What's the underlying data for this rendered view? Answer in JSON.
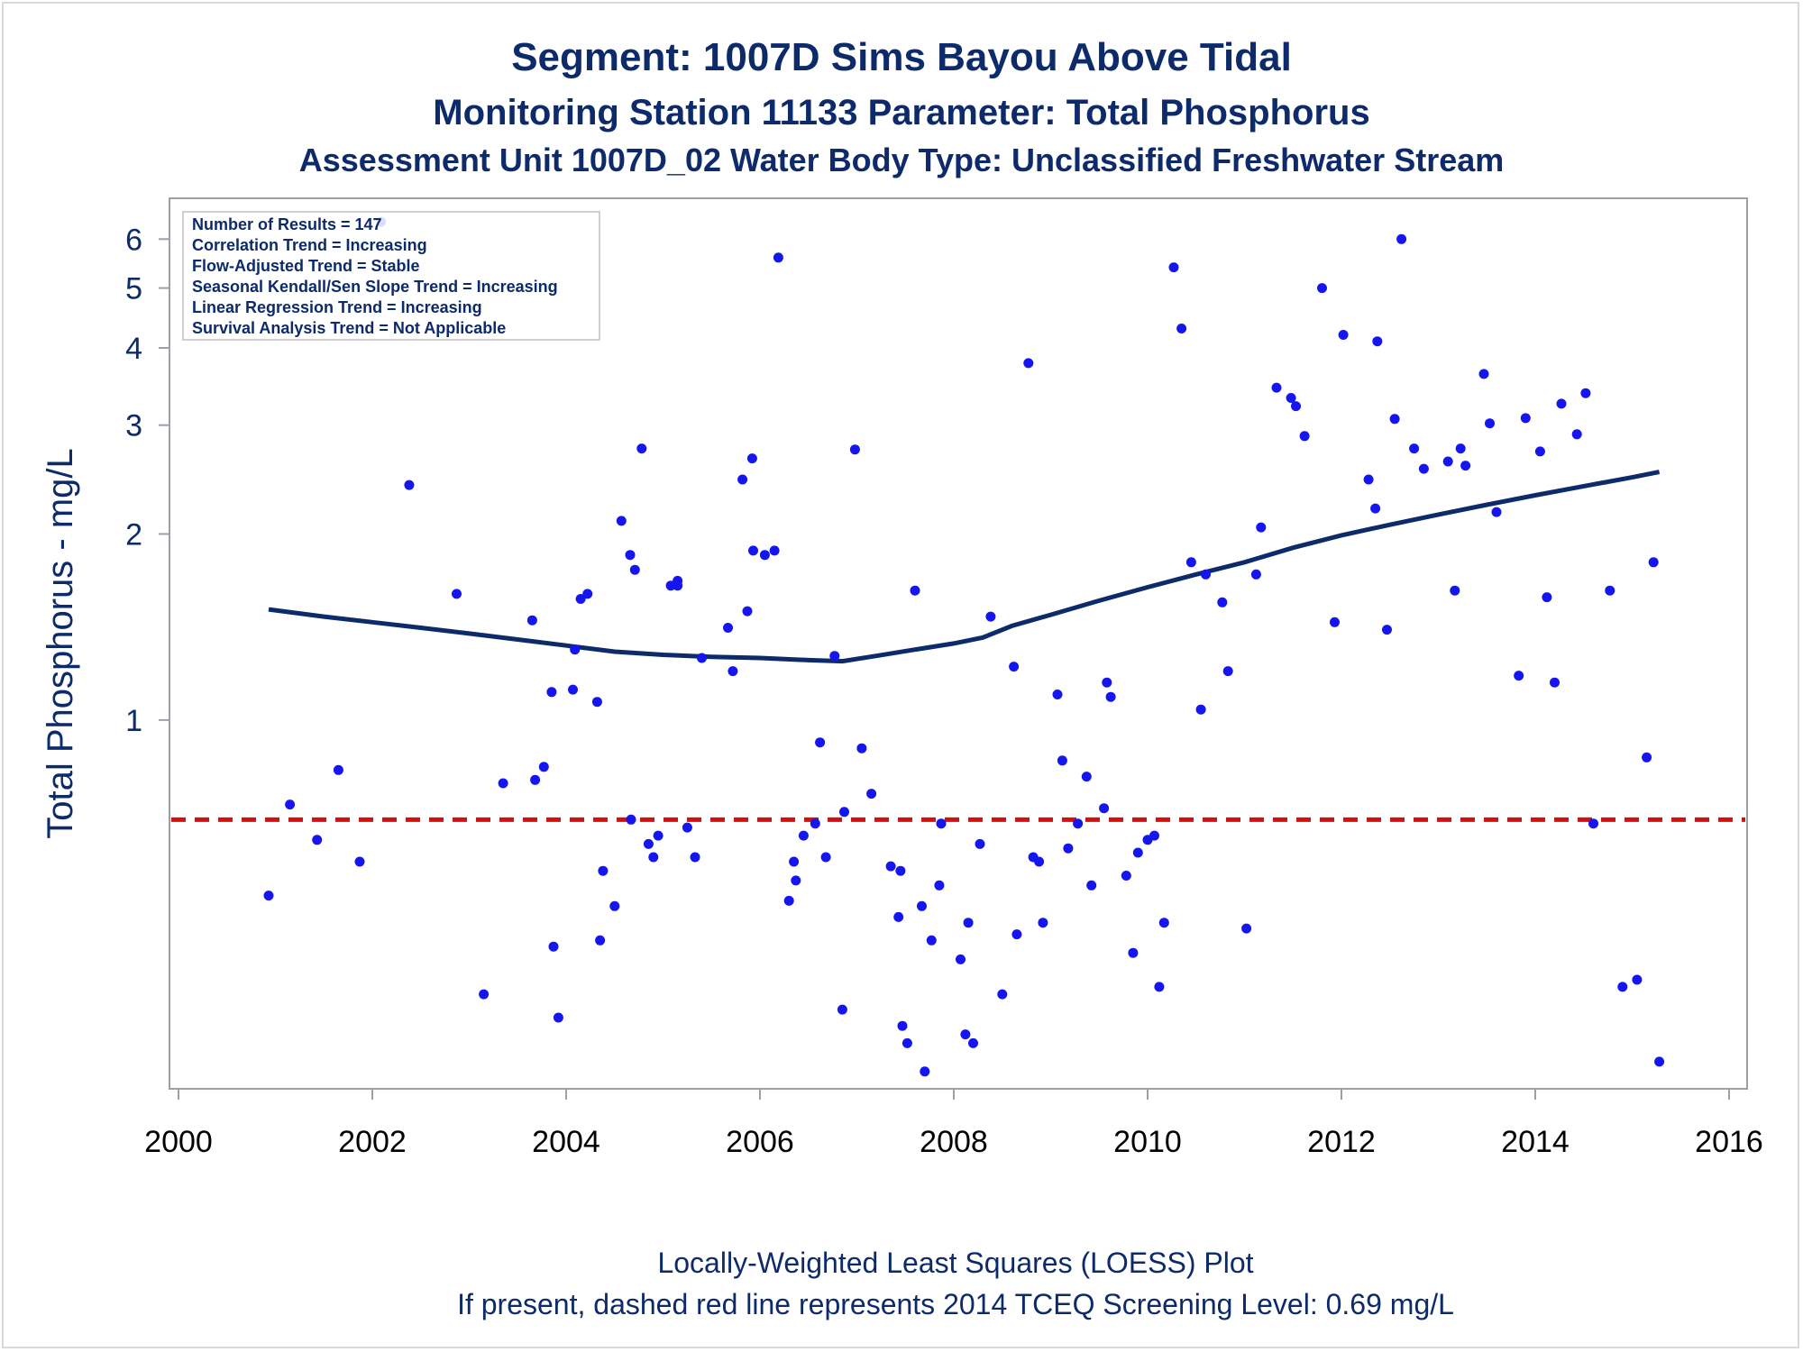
{
  "titles": [
    "Segment: 1007D  Sims Bayou Above Tidal",
    "Monitoring Station 11133 Parameter: Total Phosphorus",
    "Assessment Unit 1007D_02   Water Body Type: Unclassified Freshwater Stream"
  ],
  "footnotes": [
    "Locally-Weighted Least Squares (LOESS) Plot",
    "If present, dashed red line represents 2014 TCEQ Screening Level: 0.69 mg/L"
  ],
  "colors": {
    "text": "#0d2a6b",
    "points": "#1515f0",
    "loess": "#0d2a6b",
    "screening": "#d40f0f",
    "frame": "#9aa0a6"
  },
  "chart_data": {
    "type": "scatter",
    "y_scale": "log",
    "ylabel": "Total Phosphorus - mg/L",
    "xlabel": "",
    "xlim": [
      2000,
      2016
    ],
    "ylim": [
      0.26,
      6.8
    ],
    "x_ticks": [
      2000,
      2002,
      2004,
      2006,
      2008,
      2010,
      2012,
      2014,
      2016
    ],
    "y_ticks": [
      1,
      2,
      3,
      4,
      5,
      6
    ],
    "stats": [
      "Number of Results = 147",
      "Correlation Trend = Increasing",
      "Flow-Adjusted Trend = Stable",
      "Seasonal Kendall/Sen Slope Trend = Increasing",
      "Linear Regression Trend = Increasing",
      "Survival Analysis Trend = Not Applicable"
    ],
    "screening_level": 0.69,
    "points": [
      [
        2000.93,
        0.52
      ],
      [
        2001.15,
        0.73
      ],
      [
        2001.43,
        0.64
      ],
      [
        2001.65,
        0.83
      ],
      [
        2001.87,
        0.59
      ],
      [
        2002.09,
        6.4
      ],
      [
        2002.38,
        2.4
      ],
      [
        2002.87,
        1.6
      ],
      [
        2003.15,
        0.36
      ],
      [
        2003.35,
        0.79
      ],
      [
        2003.65,
        1.45
      ],
      [
        2003.68,
        0.8
      ],
      [
        2003.77,
        0.84
      ],
      [
        2003.85,
        1.11
      ],
      [
        2003.87,
        0.43
      ],
      [
        2003.92,
        0.33
      ],
      [
        2004.07,
        1.12
      ],
      [
        2004.09,
        1.3
      ],
      [
        2004.15,
        1.57
      ],
      [
        2004.22,
        1.6
      ],
      [
        2004.32,
        1.07
      ],
      [
        2004.35,
        0.44
      ],
      [
        2004.38,
        0.57
      ],
      [
        2004.5,
        0.5
      ],
      [
        2004.57,
        2.1
      ],
      [
        2004.66,
        1.85
      ],
      [
        2004.67,
        0.69
      ],
      [
        2004.71,
        1.75
      ],
      [
        2004.78,
        2.75
      ],
      [
        2004.85,
        0.63
      ],
      [
        2004.9,
        0.6
      ],
      [
        2004.95,
        0.65
      ],
      [
        2005.08,
        1.65
      ],
      [
        2005.15,
        1.68
      ],
      [
        2005.15,
        1.65
      ],
      [
        2005.25,
        0.67
      ],
      [
        2005.33,
        0.6
      ],
      [
        2005.4,
        1.26
      ],
      [
        2005.67,
        1.41
      ],
      [
        2005.72,
        1.2
      ],
      [
        2005.82,
        2.45
      ],
      [
        2005.87,
        1.5
      ],
      [
        2005.92,
        2.65
      ],
      [
        2005.93,
        1.88
      ],
      [
        2006.05,
        1.85
      ],
      [
        2006.15,
        1.88
      ],
      [
        2006.19,
        5.6
      ],
      [
        2006.3,
        0.51
      ],
      [
        2006.35,
        0.59
      ],
      [
        2006.37,
        0.55
      ],
      [
        2006.45,
        0.65
      ],
      [
        2006.57,
        0.68
      ],
      [
        2006.62,
        0.92
      ],
      [
        2006.68,
        0.6
      ],
      [
        2006.77,
        1.27
      ],
      [
        2006.85,
        0.34
      ],
      [
        2006.87,
        0.71
      ],
      [
        2006.98,
        2.74
      ],
      [
        2007.05,
        0.9
      ],
      [
        2007.15,
        0.76
      ],
      [
        2007.35,
        0.58
      ],
      [
        2007.43,
        0.48
      ],
      [
        2007.45,
        0.57
      ],
      [
        2007.47,
        0.32
      ],
      [
        2007.52,
        0.3
      ],
      [
        2007.6,
        1.62
      ],
      [
        2007.67,
        0.5
      ],
      [
        2007.7,
        0.27
      ],
      [
        2007.77,
        0.44
      ],
      [
        2007.85,
        0.54
      ],
      [
        2007.87,
        0.68
      ],
      [
        2008.07,
        0.41
      ],
      [
        2008.12,
        0.31
      ],
      [
        2008.15,
        0.47
      ],
      [
        2008.2,
        0.3
      ],
      [
        2008.27,
        0.63
      ],
      [
        2008.38,
        1.47
      ],
      [
        2008.5,
        0.36
      ],
      [
        2008.62,
        1.22
      ],
      [
        2008.65,
        0.45
      ],
      [
        2008.77,
        3.78
      ],
      [
        2008.82,
        0.6
      ],
      [
        2008.88,
        0.59
      ],
      [
        2008.92,
        0.47
      ],
      [
        2009.07,
        1.1
      ],
      [
        2009.12,
        0.86
      ],
      [
        2009.18,
        0.62
      ],
      [
        2009.28,
        0.68
      ],
      [
        2009.37,
        0.81
      ],
      [
        2009.42,
        0.54
      ],
      [
        2009.55,
        0.72
      ],
      [
        2009.58,
        1.15
      ],
      [
        2009.62,
        1.09
      ],
      [
        2009.78,
        0.56
      ],
      [
        2009.85,
        0.42
      ],
      [
        2009.9,
        0.61
      ],
      [
        2010.0,
        0.64
      ],
      [
        2010.07,
        0.65
      ],
      [
        2010.12,
        0.37
      ],
      [
        2010.17,
        0.47
      ],
      [
        2010.27,
        5.4
      ],
      [
        2010.35,
        4.3
      ],
      [
        2010.45,
        1.8
      ],
      [
        2010.55,
        1.04
      ],
      [
        2010.6,
        1.72
      ],
      [
        2010.77,
        1.55
      ],
      [
        2010.83,
        1.2
      ],
      [
        2011.02,
        0.46
      ],
      [
        2011.12,
        1.72
      ],
      [
        2011.17,
        2.05
      ],
      [
        2011.33,
        3.45
      ],
      [
        2011.48,
        3.32
      ],
      [
        2011.53,
        3.22
      ],
      [
        2011.62,
        2.88
      ],
      [
        2011.8,
        5.0
      ],
      [
        2011.93,
        1.44
      ],
      [
        2012.02,
        4.2
      ],
      [
        2012.28,
        2.45
      ],
      [
        2012.35,
        2.2
      ],
      [
        2012.37,
        4.1
      ],
      [
        2012.47,
        1.4
      ],
      [
        2012.55,
        3.07
      ],
      [
        2012.62,
        6.0
      ],
      [
        2012.75,
        2.75
      ],
      [
        2012.85,
        2.55
      ],
      [
        2013.1,
        2.62
      ],
      [
        2013.17,
        1.62
      ],
      [
        2013.23,
        2.75
      ],
      [
        2013.28,
        2.58
      ],
      [
        2013.47,
        3.63
      ],
      [
        2013.53,
        3.02
      ],
      [
        2013.6,
        2.17
      ],
      [
        2013.83,
        1.18
      ],
      [
        2013.9,
        3.08
      ],
      [
        2014.05,
        2.72
      ],
      [
        2014.12,
        1.58
      ],
      [
        2014.2,
        1.15
      ],
      [
        2014.27,
        3.25
      ],
      [
        2014.43,
        2.9
      ],
      [
        2014.52,
        3.38
      ],
      [
        2014.6,
        0.68
      ],
      [
        2014.77,
        1.62
      ],
      [
        2014.9,
        0.37
      ],
      [
        2015.05,
        0.38
      ],
      [
        2015.15,
        0.87
      ],
      [
        2015.22,
        1.8
      ],
      [
        2015.28,
        0.28
      ]
    ],
    "loess_curve": {
      "name": "",
      "points": [
        [
          2000.93,
          1.51
        ],
        [
          2001.5,
          1.47
        ],
        [
          2002.0,
          1.44
        ],
        [
          2002.5,
          1.41
        ],
        [
          2003.0,
          1.38
        ],
        [
          2003.5,
          1.35
        ],
        [
          2004.0,
          1.32
        ],
        [
          2004.5,
          1.29
        ],
        [
          2005.0,
          1.275
        ],
        [
          2005.5,
          1.265
        ],
        [
          2006.0,
          1.26
        ],
        [
          2006.5,
          1.25
        ],
        [
          2006.85,
          1.245
        ],
        [
          2007.2,
          1.27
        ],
        [
          2007.6,
          1.3
        ],
        [
          2008.0,
          1.33
        ],
        [
          2008.3,
          1.36
        ],
        [
          2008.6,
          1.42
        ],
        [
          2009.0,
          1.48
        ],
        [
          2009.5,
          1.56
        ],
        [
          2010.0,
          1.64
        ],
        [
          2010.5,
          1.72
        ],
        [
          2011.0,
          1.8
        ],
        [
          2011.5,
          1.9
        ],
        [
          2012.0,
          1.99
        ],
        [
          2012.5,
          2.07
        ],
        [
          2013.0,
          2.15
        ],
        [
          2013.5,
          2.23
        ],
        [
          2014.0,
          2.31
        ],
        [
          2014.5,
          2.39
        ],
        [
          2015.0,
          2.47
        ],
        [
          2015.28,
          2.52
        ]
      ]
    }
  }
}
